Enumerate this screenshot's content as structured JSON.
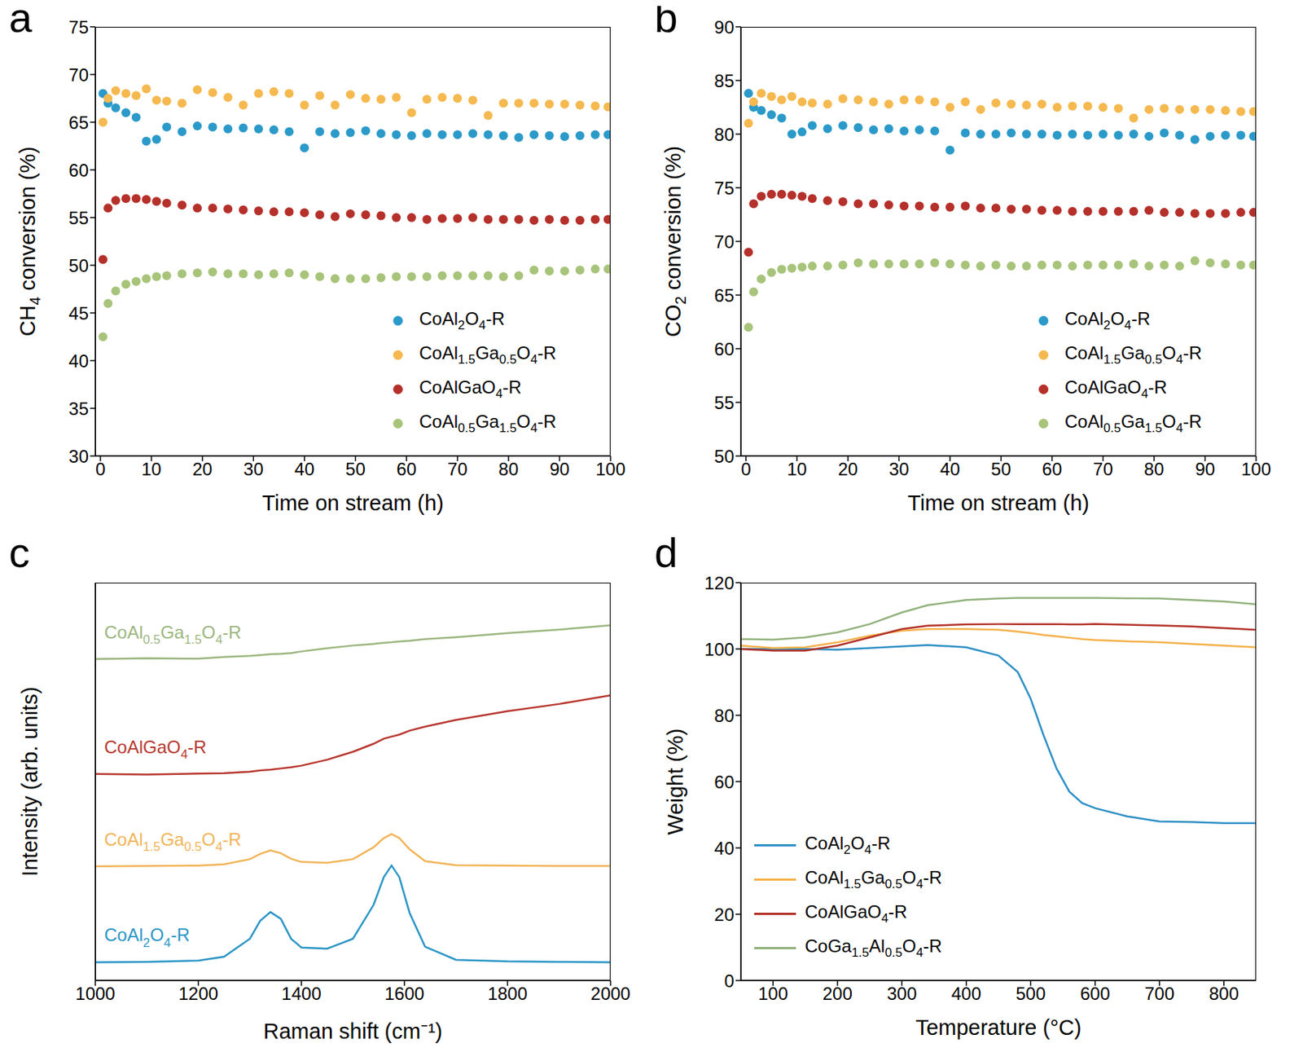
{
  "chart_data": [
    {
      "type": "scatter",
      "panel_label": "a",
      "x_label": "Time on stream (h)",
      "y_label": "CH4 conversion (%)",
      "marker": "circle",
      "grid": false,
      "legend": "lower right",
      "x": [
        0.5,
        1.5,
        3,
        5,
        7,
        9,
        11,
        13,
        16,
        19,
        22,
        25,
        28,
        31,
        34,
        37,
        40,
        43,
        46,
        49,
        52,
        55,
        58,
        61,
        64,
        67,
        70,
        73,
        76,
        79,
        82,
        85,
        88,
        91,
        94,
        97,
        99.5
      ],
      "xlim": [
        -1,
        100
      ],
      "xticks": [
        0,
        10,
        20,
        30,
        40,
        50,
        60,
        70,
        80,
        90,
        100
      ],
      "ylim": [
        30,
        75
      ],
      "yticks": [
        30,
        35,
        40,
        45,
        50,
        55,
        60,
        65,
        70,
        75
      ],
      "series": [
        {
          "name": "CoAl2O4-R",
          "color": "#2b9ac9",
          "values": [
            68,
            67,
            66.5,
            66,
            65.5,
            63,
            63.2,
            64.5,
            64,
            64.6,
            64.5,
            64.3,
            64.4,
            64.3,
            64.2,
            64.0,
            62.3,
            64,
            63.8,
            63.9,
            64.1,
            63.8,
            63.7,
            63.6,
            63.8,
            63.7,
            63.7,
            63.8,
            63.7,
            63.6,
            63.4,
            63.7,
            63.6,
            63.5,
            63.6,
            63.7,
            63.7
          ]
        },
        {
          "name": "CoAl1.5Ga0.5O4-R",
          "color": "#f5b94f",
          "values": [
            65,
            67.5,
            68.3,
            68,
            67.8,
            68.5,
            67.3,
            67.2,
            67,
            68.4,
            68.1,
            67.6,
            66.8,
            68,
            68.2,
            68,
            66.8,
            67.8,
            66.8,
            67.9,
            67.5,
            67.4,
            67.6,
            66,
            67.4,
            67.6,
            67.5,
            67.3,
            65.7,
            67,
            67,
            67,
            66.9,
            66.9,
            66.8,
            66.7,
            66.6
          ]
        },
        {
          "name": "CoAlGaO4-R",
          "color": "#b5302a",
          "values": [
            50.6,
            56,
            56.8,
            57,
            57,
            56.9,
            56.7,
            56.5,
            56.3,
            56.0,
            56.0,
            55.9,
            55.8,
            55.7,
            55.6,
            55.6,
            55.5,
            55.3,
            55.1,
            55.4,
            55.3,
            55.2,
            55.0,
            55.0,
            54.8,
            54.9,
            54.9,
            55.0,
            54.8,
            54.8,
            54.8,
            54.7,
            54.8,
            54.7,
            54.7,
            54.8,
            54.8
          ]
        },
        {
          "name": "CoAl0.5Ga1.5O4-R",
          "color": "#a7c47a",
          "values": [
            42.5,
            46,
            47.3,
            48,
            48.3,
            48.6,
            48.8,
            48.9,
            49.1,
            49.2,
            49.3,
            49.1,
            49.1,
            49.0,
            49.1,
            49.2,
            49.0,
            48.8,
            48.6,
            48.6,
            48.6,
            48.7,
            48.8,
            48.8,
            48.8,
            48.9,
            48.9,
            48.9,
            48.9,
            48.8,
            48.9,
            49.5,
            49.4,
            49.4,
            49.5,
            49.6,
            49.6
          ]
        }
      ]
    },
    {
      "type": "scatter",
      "panel_label": "b",
      "x_label": "Time on stream (h)",
      "y_label": "CO2 conversion (%)",
      "marker": "circle",
      "grid": false,
      "legend": "lower right",
      "x": [
        0.5,
        1.5,
        3,
        5,
        7,
        9,
        11,
        13,
        16,
        19,
        22,
        25,
        28,
        31,
        34,
        37,
        40,
        43,
        46,
        49,
        52,
        55,
        58,
        61,
        64,
        67,
        70,
        73,
        76,
        79,
        82,
        85,
        88,
        91,
        94,
        97,
        99.5
      ],
      "xlim": [
        -1,
        100
      ],
      "xticks": [
        0,
        10,
        20,
        30,
        40,
        50,
        60,
        70,
        80,
        90,
        100
      ],
      "ylim": [
        50,
        90
      ],
      "yticks": [
        50,
        55,
        60,
        65,
        70,
        75,
        80,
        85,
        90
      ],
      "series": [
        {
          "name": "CoAl2O4-R",
          "color": "#2b9ac9",
          "values": [
            83.8,
            82.5,
            82.2,
            81.8,
            81.5,
            80,
            80.2,
            80.8,
            80.5,
            80.8,
            80.6,
            80.4,
            80.5,
            80.3,
            80.4,
            80.3,
            78.5,
            80.1,
            80.0,
            80.0,
            80.1,
            80.0,
            80.0,
            79.9,
            80.0,
            79.9,
            80.0,
            79.9,
            80.0,
            79.8,
            80.1,
            79.9,
            79.5,
            79.8,
            79.9,
            79.9,
            79.8
          ]
        },
        {
          "name": "CoAl1.5Ga0.5O4-R",
          "color": "#f5b94f",
          "values": [
            81,
            83,
            83.8,
            83.5,
            83.2,
            83.5,
            83,
            82.9,
            82.8,
            83.3,
            83.2,
            83.0,
            82.8,
            83.2,
            83.2,
            83.0,
            82.5,
            83.0,
            82.3,
            82.9,
            82.8,
            82.7,
            82.8,
            82.5,
            82.6,
            82.6,
            82.5,
            82.4,
            81.5,
            82.3,
            82.4,
            82.3,
            82.3,
            82.3,
            82.2,
            82.1,
            82.1
          ]
        },
        {
          "name": "CoAlGaO4-R",
          "color": "#b5302a",
          "values": [
            69,
            73.5,
            74.2,
            74.4,
            74.4,
            74.3,
            74.2,
            74.0,
            73.8,
            73.7,
            73.5,
            73.5,
            73.4,
            73.3,
            73.3,
            73.2,
            73.2,
            73.3,
            73.1,
            73.1,
            73.0,
            73.0,
            72.9,
            72.9,
            72.8,
            72.8,
            72.8,
            72.8,
            72.8,
            72.9,
            72.7,
            72.7,
            72.6,
            72.6,
            72.6,
            72.7,
            72.7
          ]
        },
        {
          "name": "CoAl0.5Ga1.5O4-R",
          "color": "#a7c47a",
          "values": [
            62,
            65.3,
            66.5,
            67.1,
            67.4,
            67.5,
            67.6,
            67.7,
            67.7,
            67.8,
            68.0,
            67.9,
            67.9,
            67.9,
            67.9,
            68.0,
            67.9,
            67.8,
            67.7,
            67.8,
            67.7,
            67.7,
            67.8,
            67.8,
            67.7,
            67.8,
            67.8,
            67.8,
            67.9,
            67.7,
            67.8,
            67.7,
            68.2,
            68.0,
            67.9,
            67.8,
            67.8
          ]
        }
      ]
    },
    {
      "type": "line",
      "panel_label": "c",
      "x_label": "Raman shift (cm⁻¹)",
      "y_label": "Intensity (arb. units)",
      "grid": false,
      "tick_labels": "x",
      "x": [
        1000,
        1100,
        1200,
        1250,
        1300,
        1320,
        1340,
        1360,
        1380,
        1400,
        1450,
        1500,
        1540,
        1560,
        1575,
        1590,
        1610,
        1640,
        1700,
        1800,
        1900,
        2000
      ],
      "xlim": [
        1000,
        2000
      ],
      "xticks": [
        1000,
        1200,
        1400,
        1600,
        1800,
        2000
      ],
      "ylim": [
        0,
        100
      ],
      "series": [
        {
          "name": "CoAl0.5Ga1.5O4-R",
          "color": "#9cb67f",
          "values": [
            80.8,
            81.0,
            80.9,
            81.3,
            81.6,
            81.8,
            82.0,
            82.1,
            82.3,
            82.7,
            83.5,
            84.2,
            84.6,
            84.9,
            85.0,
            85.2,
            85.4,
            85.8,
            86.3,
            87.3,
            88.2,
            89.3
          ]
        },
        {
          "name": "CoAlGaO4-R",
          "color": "#b8372f",
          "values": [
            51.9,
            51.8,
            52.0,
            52.1,
            52.5,
            52.8,
            53.0,
            53.3,
            53.6,
            54.0,
            55.5,
            57.5,
            59.5,
            60.8,
            61.3,
            61.8,
            62.8,
            63.8,
            65.5,
            67.7,
            69.5,
            71.7
          ]
        },
        {
          "name": "CoAl1.5Ga0.5O4-R",
          "color": "#f2b458",
          "values": [
            28.7,
            28.8,
            28.9,
            29.2,
            30.5,
            31.8,
            32.7,
            32.0,
            30.6,
            29.8,
            29.6,
            30.5,
            33.5,
            35.8,
            36.8,
            35.8,
            33.0,
            30.0,
            29.0,
            28.9,
            28.8,
            28.8
          ]
        },
        {
          "name": "CoAl2O4-R",
          "color": "#2a95c6",
          "values": [
            4.6,
            4.7,
            5.0,
            6.0,
            10.5,
            15,
            17.2,
            15.5,
            10.5,
            8.3,
            8.0,
            10.5,
            19,
            26,
            28.9,
            26,
            17,
            8.5,
            5.2,
            4.8,
            4.7,
            4.6
          ]
        }
      ]
    },
    {
      "type": "line",
      "panel_label": "d",
      "x_label": "Temperature (°C)",
      "y_label": "Weight (%)",
      "grid": false,
      "legend": "lower left",
      "x": [
        50,
        100,
        150,
        200,
        250,
        300,
        340,
        400,
        450,
        480,
        500,
        520,
        540,
        560,
        580,
        600,
        650,
        700,
        750,
        800,
        850
      ],
      "xlim": [
        50,
        850
      ],
      "xticks": [
        100,
        200,
        300,
        400,
        500,
        600,
        700,
        800
      ],
      "ylim": [
        0,
        120
      ],
      "yticks": [
        0,
        20,
        40,
        60,
        80,
        100,
        120
      ],
      "series": [
        {
          "name": "CoAl2O4-R",
          "color": "#2d8fc5",
          "values": [
            100,
            100,
            100,
            99.8,
            100.3,
            100.8,
            101.2,
            100.5,
            98,
            93,
            85,
            74,
            64,
            57,
            53.5,
            52,
            49.5,
            48,
            47.8,
            47.5,
            47.5
          ]
        },
        {
          "name": "CoAl1.5Ga0.5O4-R",
          "color": "#f4b14a",
          "values": [
            101,
            100.3,
            100.5,
            102,
            104,
            105.5,
            106,
            106,
            105.8,
            105.2,
            104.8,
            104.2,
            103.8,
            103.4,
            103,
            102.7,
            102.3,
            102,
            101.5,
            101,
            100.5
          ]
        },
        {
          "name": "CoAlGaO4-R",
          "color": "#b33228",
          "values": [
            100,
            99.5,
            99.5,
            101,
            103.5,
            106,
            107,
            107.4,
            107.5,
            107.5,
            107.5,
            107.5,
            107.5,
            107.4,
            107.4,
            107.5,
            107.3,
            107.1,
            106.8,
            106.3,
            105.8
          ]
        },
        {
          "name": "CoGa1.5Al0.5O4-R",
          "color": "#92b27c",
          "values": [
            103,
            102.8,
            103.5,
            105,
            107.5,
            111,
            113.2,
            114.8,
            115.2,
            115.4,
            115.4,
            115.4,
            115.4,
            115.4,
            115.4,
            115.4,
            115.3,
            115.2,
            114.8,
            114.3,
            113.5
          ]
        }
      ]
    }
  ]
}
